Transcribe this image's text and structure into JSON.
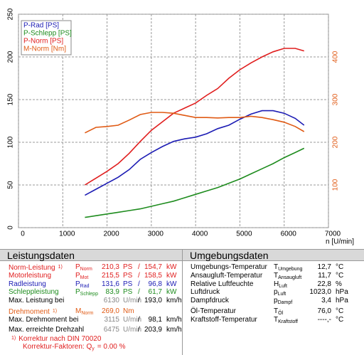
{
  "chart_data": {
    "type": "line",
    "x": [
      1500,
      1750,
      2000,
      2250,
      2500,
      2750,
      3000,
      3250,
      3500,
      3750,
      4000,
      4250,
      4500,
      4750,
      5000,
      5250,
      5500,
      5750,
      6000,
      6250,
      6450
    ],
    "series": [
      {
        "name": "P-Rad [PS]",
        "color": "#1c1cb4",
        "values": [
          38,
          45,
          52,
          59,
          68,
          80,
          88,
          95,
          101,
          104,
          106,
          110,
          116,
          120,
          127,
          133,
          137,
          137,
          134,
          128,
          120
        ]
      },
      {
        "name": "P-Schlepp [PS]",
        "color": "#1e8c1e",
        "values": [
          12,
          14,
          16,
          18,
          20,
          22,
          25,
          28,
          31,
          35,
          39,
          43,
          47,
          52,
          57,
          63,
          69,
          75,
          82,
          88,
          93
        ]
      },
      {
        "name": "P-Norm [PS]",
        "color": "#e01e1e",
        "values": [
          50,
          58,
          66,
          75,
          87,
          101,
          114,
          124,
          134,
          140,
          146,
          155,
          163,
          175,
          185,
          193,
          200,
          206,
          210,
          210,
          207
        ]
      },
      {
        "name": "M-Norm [Nm]",
        "color": "#e05a14",
        "axis": "y2",
        "values": [
          222,
          235,
          237,
          240,
          252,
          265,
          270,
          270,
          268,
          263,
          258,
          258,
          257,
          258,
          258,
          261,
          258,
          253,
          247,
          237,
          225
        ]
      }
    ],
    "xlabel": "n [U/min]",
    "xlim": [
      0,
      7000
    ],
    "xticks": [
      0,
      1000,
      2000,
      3000,
      4000,
      5000,
      6000,
      7000
    ],
    "ylim": [
      0,
      250
    ],
    "yticks": [
      0,
      50,
      100,
      150,
      200,
      250
    ],
    "y2lim": [
      0,
      500
    ],
    "y2ticks": [
      100,
      200,
      300,
      400
    ],
    "y2color": "#e05a14",
    "grid": true,
    "legend_position": "upper left"
  },
  "leistungsdaten": {
    "title": "Leistungsdaten",
    "rows": [
      {
        "label": "Norm-Leistung",
        "note": "1)",
        "sym": "P",
        "sub": "Norm",
        "v1": "210,3",
        "u1": "PS",
        "sep": "/",
        "v2": "154,7",
        "u2": "kW"
      },
      {
        "label": "Motorleistung",
        "sym": "P",
        "sub": "Mot",
        "v1": "215,5",
        "u1": "PS",
        "sep": "/",
        "v2": "158,5",
        "u2": "kW"
      },
      {
        "label": "Radleistung",
        "sym": "P",
        "sub": "Rad",
        "v1": "131,6",
        "u1": "PS",
        "sep": "/",
        "v2": "96,8",
        "u2": "kW"
      },
      {
        "label": "Schleppleistung",
        "sym": "P",
        "sub": "Schlepp",
        "v1": "83,9",
        "u1": "PS",
        "sep": "/",
        "v2": "61,7",
        "u2": "kW"
      },
      {
        "label": "Max. Leistung bei",
        "v1": "6130",
        "u1": "U/min",
        "sep": "/",
        "v2": "193,0",
        "u2": "km/h"
      },
      {
        "label": "Drehmoment",
        "note": "1)",
        "sym": "M",
        "sub": "Norm",
        "v1": "269,0",
        "u1": "Nm"
      },
      {
        "label": "Max. Drehmoment bei",
        "v1": "3115",
        "u1": "U/min",
        "sep": "/",
        "v2": "98,1",
        "u2": "km/h"
      },
      {
        "label": "Max. erreichte Drehzahl",
        "v1": "6475",
        "u1": "U/min",
        "sep": "/",
        "v2": "203,9",
        "u2": "km/h"
      },
      {
        "note": "1)",
        "label": "Korrektur nach DIN 70020"
      },
      {
        "label": "Korrektur-Faktoren: Q",
        "label_sub": "y",
        "tail": "=  0.00 %"
      }
    ]
  },
  "umgebungsdaten": {
    "title": "Umgebungsdaten",
    "rows": [
      {
        "label": "Umgebungs-Temperatur",
        "sym": "T",
        "sub": "Umgebung",
        "v1": "12,7",
        "u1": "°C"
      },
      {
        "label": "Ansaugluft-Temperatur",
        "sym": "T",
        "sub": "Ansaugluft",
        "v1": "11,7",
        "u1": "°C"
      },
      {
        "label": "Relative Luftfeuchte",
        "sym": "H",
        "sub": "Luft",
        "v1": "22,8",
        "u1": "%"
      },
      {
        "label": "Luftdruck",
        "sym": "p",
        "sub": "Luft",
        "v1": "1023,0",
        "u1": "hPa"
      },
      {
        "label": "Dampfdruck",
        "sym": "p",
        "sub": "Dampf",
        "v1": "3,4",
        "u1": "hPa"
      },
      {
        "label": "Öl-Temperatur",
        "sym": "T",
        "sub": "Öl",
        "v1": "76,0",
        "u1": "°C"
      },
      {
        "label": "Kraftstoff-Temperatur",
        "sym": "T",
        "sub": "Kraftstoff",
        "v1": "----,-",
        "u1": "°C"
      }
    ]
  }
}
